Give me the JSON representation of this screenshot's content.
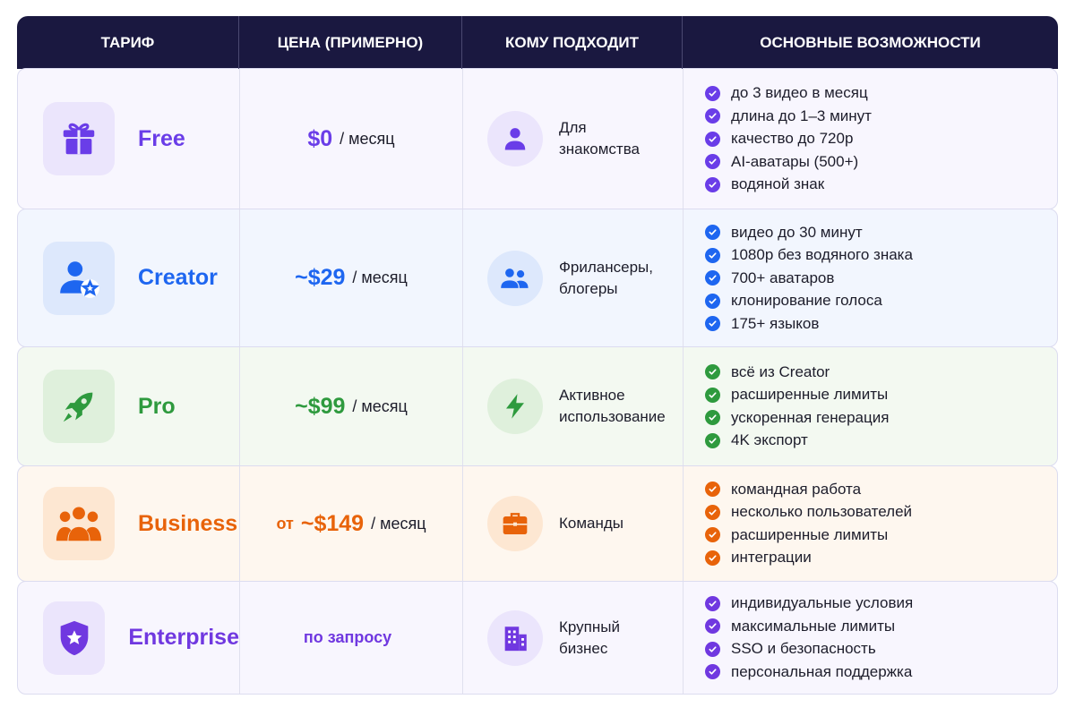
{
  "header": {
    "columns": [
      "ТАРИФ",
      "ЦЕНА (ПРИМЕРНО)",
      "КОМУ ПОДХОДИТ",
      "ОСНОВНЫЕ ВОЗМОЖНОСТИ"
    ]
  },
  "plans": [
    {
      "name": "Free",
      "icon": "gift-icon",
      "audience_icon": "user-icon",
      "color": "#6a3de8",
      "bg": "#f8f6fe",
      "tile": "#ebe5fc",
      "price_prefix": "",
      "price": "$0",
      "period": "/ месяц",
      "audience": "Для\nзнакомства",
      "features": [
        "до 3 видео в месяц",
        "длина до 1–3 минут",
        "качество до 720p",
        "AI-аватары (500+)",
        "водяной знак"
      ]
    },
    {
      "name": "Creator",
      "icon": "user-star-icon",
      "audience_icon": "users-icon",
      "color": "#1e66f0",
      "bg": "#f2f6fe",
      "tile": "#dde8fc",
      "price_prefix": "",
      "price": "~$29",
      "period": "/ месяц",
      "audience": "Фрилансеры,\nблогеры",
      "features": [
        "видео до 30 минут",
        "1080p без водяного знака",
        "700+ аватаров",
        "клонирование голоса",
        "175+ языков"
      ]
    },
    {
      "name": "Pro",
      "icon": "rocket-icon",
      "audience_icon": "lightning-icon",
      "color": "#2e9a3e",
      "bg": "#f3f9f1",
      "tile": "#dff0dc",
      "price_prefix": "",
      "price": "~$99",
      "period": "/ месяц",
      "audience": "Активное\nиспользование",
      "features": [
        "всё из Creator",
        "расширенные лимиты",
        "ускоренная генерация",
        "4K экспорт"
      ]
    },
    {
      "name": "Business",
      "icon": "team-icon",
      "audience_icon": "briefcase-icon",
      "color": "#e8630a",
      "bg": "#fef7ef",
      "tile": "#fde7d2",
      "price_prefix": "от",
      "price": "~$149",
      "period": "/ месяц",
      "audience": "Команды",
      "features": [
        "командная работа",
        "несколько пользователей",
        "расширенные лимиты",
        "интеграции"
      ]
    },
    {
      "name": "Enterprise",
      "icon": "shield-star-icon",
      "audience_icon": "building-icon",
      "color": "#7038e0",
      "bg": "#f8f6fe",
      "tile": "#ebe5fc",
      "price_prefix": "",
      "price": "по запросу",
      "period": "",
      "audience": "Крупный\nбизнес",
      "features": [
        "индивидуальные условия",
        "максимальные лимиты",
        "SSO и безопасность",
        "персональная поддержка"
      ]
    }
  ]
}
